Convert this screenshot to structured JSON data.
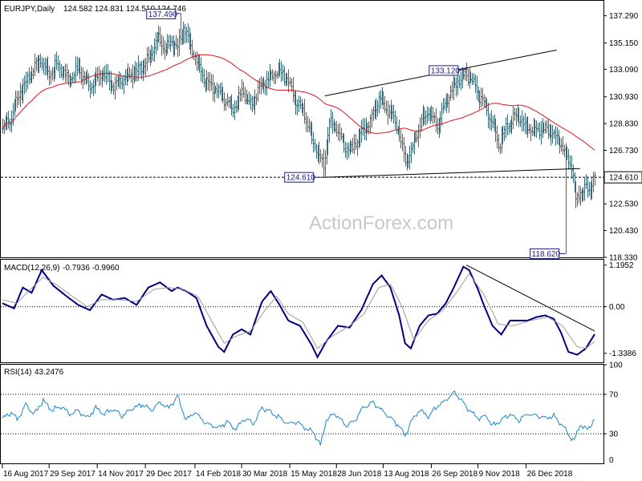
{
  "chart_data": [
    {
      "type": "candlestick",
      "header": {
        "symbol": "EURJPY,Daily",
        "ohlc": "124.582 124.831 124.510 124.746"
      },
      "watermark": "ActionForex.com",
      "ylim": [
        118.33,
        138.4
      ],
      "yticks": [
        "137.290",
        "135.150",
        "133.090",
        "130.930",
        "128.830",
        "126.730",
        "124.610",
        "122.530",
        "120.430",
        "118.330"
      ],
      "current_price": {
        "value": 124.61,
        "label": "124.610"
      },
      "annotations": [
        {
          "label": "137.490",
          "value": 137.49,
          "x_index": 122
        },
        {
          "label": "133.120",
          "value": 133.12,
          "x_index": 319
        },
        {
          "label": "124.610",
          "value": 124.61,
          "x_index": 221
        },
        {
          "label": "118.620",
          "value": 118.62,
          "x_index": 386
        }
      ],
      "trendlines": [
        {
          "from": {
            "x_index": 221,
            "value": 131.0
          },
          "to": {
            "x_index": 380,
            "value": 134.6
          }
        },
        {
          "from": {
            "x_index": 221,
            "value": 124.61
          },
          "to": {
            "x_index": 396,
            "value": 125.3
          }
        }
      ],
      "moving_average_color": "#e0161a",
      "price_color": "#3d6978",
      "anchors": [
        [
          0,
          128.4
        ],
        [
          6,
          129.3
        ],
        [
          12,
          131.4
        ],
        [
          18,
          132.4
        ],
        [
          25,
          133.9
        ],
        [
          31,
          132.8
        ],
        [
          38,
          133.4
        ],
        [
          45,
          132.3
        ],
        [
          52,
          133.1
        ],
        [
          60,
          131.8
        ],
        [
          68,
          132.8
        ],
        [
          76,
          131.8
        ],
        [
          84,
          132.4
        ],
        [
          92,
          132.9
        ],
        [
          100,
          133.8
        ],
        [
          106,
          135.6
        ],
        [
          111,
          134.7
        ],
        [
          116,
          135.3
        ],
        [
          120,
          134.6
        ],
        [
          124,
          136.6
        ],
        [
          128,
          135.0
        ],
        [
          133,
          133.8
        ],
        [
          138,
          132.4
        ],
        [
          145,
          131.6
        ],
        [
          152,
          130.7
        ],
        [
          158,
          130.0
        ],
        [
          164,
          131.4
        ],
        [
          170,
          130.2
        ],
        [
          177,
          131.8
        ],
        [
          183,
          132.4
        ],
        [
          189,
          133.0
        ],
        [
          195,
          132.4
        ],
        [
          200,
          130.8
        ],
        [
          206,
          129.8
        ],
        [
          212,
          127.6
        ],
        [
          216,
          126.6
        ],
        [
          220,
          125.5
        ],
        [
          224,
          128.8
        ],
        [
          229,
          128.4
        ],
        [
          234,
          127.0
        ],
        [
          240,
          126.8
        ],
        [
          246,
          128.2
        ],
        [
          252,
          129.0
        ],
        [
          258,
          130.8
        ],
        [
          262,
          130.2
        ],
        [
          267,
          129.6
        ],
        [
          272,
          128.0
        ],
        [
          276,
          125.8
        ],
        [
          280,
          126.6
        ],
        [
          286,
          128.8
        ],
        [
          292,
          129.8
        ],
        [
          298,
          128.6
        ],
        [
          304,
          130.6
        ],
        [
          310,
          131.9
        ],
        [
          316,
          132.6
        ],
        [
          320,
          132.4
        ],
        [
          325,
          131.4
        ],
        [
          330,
          130.4
        ],
        [
          336,
          128.8
        ],
        [
          340,
          127.2
        ],
        [
          346,
          128.6
        ],
        [
          352,
          129.6
        ],
        [
          357,
          128.8
        ],
        [
          362,
          128.4
        ],
        [
          368,
          128.5
        ],
        [
          374,
          128.3
        ],
        [
          380,
          127.8
        ],
        [
          386,
          126.4
        ],
        [
          390,
          125.6
        ],
        [
          393,
          122.8
        ],
        [
          396,
          123.6
        ],
        [
          399,
          123.6
        ],
        [
          403,
          123.8
        ],
        [
          406,
          124.7
        ]
      ],
      "spikes": [
        {
          "index": 122,
          "high": 137.49
        },
        {
          "index": 319,
          "high": 133.12
        },
        {
          "index": 221,
          "low": 124.61
        },
        {
          "index": 386,
          "low": 118.62
        }
      ]
    },
    {
      "type": "line",
      "indicator": "MACD",
      "header": {
        "label": "MACD(12,26,9)",
        "values": "-0.7936 -0.9960"
      },
      "ylim": [
        -1.6,
        1.35
      ],
      "yticks": [
        "1.1952",
        "0.00",
        "-1.3386"
      ],
      "level_lines": [
        0.0
      ],
      "series": [
        {
          "role": "macd",
          "color": "#000080",
          "anchors": [
            [
              0,
              0.1
            ],
            [
              8,
              -0.05
            ],
            [
              14,
              0.55
            ],
            [
              20,
              0.4
            ],
            [
              27,
              1.05
            ],
            [
              35,
              0.6
            ],
            [
              44,
              0.3
            ],
            [
              52,
              0.05
            ],
            [
              60,
              -0.1
            ],
            [
              68,
              0.35
            ],
            [
              76,
              0.2
            ],
            [
              84,
              0.25
            ],
            [
              92,
              0.05
            ],
            [
              100,
              0.55
            ],
            [
              108,
              0.7
            ],
            [
              116,
              0.45
            ],
            [
              120,
              0.55
            ],
            [
              126,
              0.45
            ],
            [
              133,
              0.25
            ],
            [
              140,
              -0.55
            ],
            [
              148,
              -1.15
            ],
            [
              152,
              -1.3
            ],
            [
              158,
              -0.8
            ],
            [
              164,
              -0.65
            ],
            [
              170,
              -0.8
            ],
            [
              178,
              0.15
            ],
            [
              184,
              0.45
            ],
            [
              190,
              0.05
            ],
            [
              196,
              -0.4
            ],
            [
              204,
              -0.55
            ],
            [
              212,
              -1.1
            ],
            [
              216,
              -1.45
            ],
            [
              222,
              -1.0
            ],
            [
              230,
              -0.55
            ],
            [
              238,
              -0.6
            ],
            [
              246,
              -0.1
            ],
            [
              254,
              0.65
            ],
            [
              260,
              0.9
            ],
            [
              266,
              0.55
            ],
            [
              272,
              -0.25
            ],
            [
              276,
              -1.05
            ],
            [
              280,
              -1.2
            ],
            [
              286,
              -0.55
            ],
            [
              292,
              -0.25
            ],
            [
              298,
              -0.2
            ],
            [
              304,
              0.1
            ],
            [
              310,
              0.6
            ],
            [
              316,
              1.15
            ],
            [
              320,
              1.05
            ],
            [
              326,
              0.5
            ],
            [
              330,
              0.05
            ],
            [
              336,
              -0.55
            ],
            [
              342,
              -0.8
            ],
            [
              348,
              -0.4
            ],
            [
              354,
              -0.4
            ],
            [
              360,
              -0.4
            ],
            [
              366,
              -0.3
            ],
            [
              372,
              -0.25
            ],
            [
              378,
              -0.35
            ],
            [
              383,
              -0.75
            ],
            [
              388,
              -1.3
            ],
            [
              394,
              -1.38
            ],
            [
              400,
              -1.2
            ],
            [
              406,
              -0.79
            ]
          ]
        },
        {
          "role": "signal",
          "color": "#9c9c9c",
          "anchors": [
            [
              0,
              0.2
            ],
            [
              10,
              0.1
            ],
            [
              18,
              0.45
            ],
            [
              28,
              0.85
            ],
            [
              38,
              0.6
            ],
            [
              48,
              0.3
            ],
            [
              58,
              0.0
            ],
            [
              68,
              0.2
            ],
            [
              80,
              0.2
            ],
            [
              92,
              0.15
            ],
            [
              104,
              0.5
            ],
            [
              114,
              0.55
            ],
            [
              124,
              0.5
            ],
            [
              134,
              0.3
            ],
            [
              142,
              -0.3
            ],
            [
              152,
              -1.05
            ],
            [
              160,
              -0.85
            ],
            [
              170,
              -0.7
            ],
            [
              180,
              -0.1
            ],
            [
              188,
              0.3
            ],
            [
              196,
              -0.2
            ],
            [
              206,
              -0.45
            ],
            [
              216,
              -1.2
            ],
            [
              226,
              -0.85
            ],
            [
              238,
              -0.55
            ],
            [
              248,
              -0.2
            ],
            [
              258,
              0.55
            ],
            [
              266,
              0.65
            ],
            [
              274,
              0.0
            ],
            [
              282,
              -0.95
            ],
            [
              292,
              -0.4
            ],
            [
              302,
              -0.1
            ],
            [
              312,
              0.45
            ],
            [
              320,
              0.95
            ],
            [
              330,
              0.35
            ],
            [
              340,
              -0.5
            ],
            [
              350,
              -0.55
            ],
            [
              362,
              -0.4
            ],
            [
              374,
              -0.3
            ],
            [
              384,
              -0.55
            ],
            [
              394,
              -1.15
            ],
            [
              400,
              -1.2
            ],
            [
              406,
              -1.0
            ]
          ]
        }
      ],
      "trendline": {
        "from": {
          "x_index": 318,
          "value": 1.2
        },
        "to": {
          "x_index": 406,
          "value": -0.7
        }
      }
    },
    {
      "type": "line",
      "indicator": "RSI",
      "header": {
        "label": "RSI(14)",
        "value": "43.2476"
      },
      "ylim": [
        0,
        100
      ],
      "yticks": [
        "100",
        "70",
        "30",
        "0"
      ],
      "level_lines": [
        70,
        30
      ],
      "series": [
        {
          "role": "rsi",
          "color": "#1c87c9",
          "anchors": [
            [
              0,
              45
            ],
            [
              6,
              52
            ],
            [
              10,
              44
            ],
            [
              16,
              60
            ],
            [
              22,
              50
            ],
            [
              28,
              64
            ],
            [
              34,
              54
            ],
            [
              40,
              58
            ],
            [
              46,
              50
            ],
            [
              52,
              54
            ],
            [
              58,
              46
            ],
            [
              64,
              56
            ],
            [
              70,
              50
            ],
            [
              76,
              55
            ],
            [
              82,
              48
            ],
            [
              90,
              56
            ],
            [
              96,
              60
            ],
            [
              102,
              54
            ],
            [
              108,
              62
            ],
            [
              114,
              56
            ],
            [
              120,
              68
            ],
            [
              126,
              44
            ],
            [
              132,
              52
            ],
            [
              140,
              40
            ],
            [
              148,
              36
            ],
            [
              154,
              42
            ],
            [
              160,
              34
            ],
            [
              166,
              46
            ],
            [
              172,
              40
            ],
            [
              178,
              56
            ],
            [
              184,
              52
            ],
            [
              190,
              46
            ],
            [
              196,
              40
            ],
            [
              202,
              42
            ],
            [
              208,
              36
            ],
            [
              214,
              30
            ],
            [
              218,
              18
            ],
            [
              222,
              44
            ],
            [
              228,
              50
            ],
            [
              236,
              38
            ],
            [
              242,
              44
            ],
            [
              248,
              58
            ],
            [
              254,
              62
            ],
            [
              260,
              54
            ],
            [
              266,
              46
            ],
            [
              272,
              38
            ],
            [
              276,
              28
            ],
            [
              280,
              42
            ],
            [
              286,
              54
            ],
            [
              292,
              48
            ],
            [
              298,
              58
            ],
            [
              304,
              64
            ],
            [
              310,
              72
            ],
            [
              316,
              62
            ],
            [
              320,
              54
            ],
            [
              326,
              46
            ],
            [
              332,
              48
            ],
            [
              336,
              38
            ],
            [
              342,
              44
            ],
            [
              348,
              50
            ],
            [
              354,
              44
            ],
            [
              360,
              50
            ],
            [
              366,
              48
            ],
            [
              372,
              46
            ],
            [
              378,
              48
            ],
            [
              384,
              38
            ],
            [
              388,
              30
            ],
            [
              392,
              22
            ],
            [
              396,
              40
            ],
            [
              400,
              34
            ],
            [
              406,
              43
            ]
          ]
        }
      ]
    }
  ],
  "x_axis": {
    "labels": [
      "16 Aug 2017",
      "29 Sep 2017",
      "14 Nov 2017",
      "29 Dec 2017",
      "14 Feb 2018",
      "30 Mar 2018",
      "15 May 2018",
      "28 Jun 2018",
      "13 Aug 2018",
      "26 Sep 2018",
      "9 Nov 2018",
      "26 Dec 2018"
    ],
    "label_indices": [
      0,
      32,
      65,
      98,
      132,
      164,
      197,
      229,
      261,
      294,
      326,
      359
    ],
    "bar_count": 407
  }
}
